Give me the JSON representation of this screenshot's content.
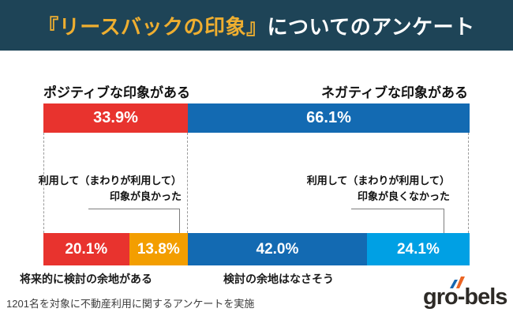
{
  "colors": {
    "header_bg": "#1e4457",
    "title_accent": "#eeae30",
    "red": "#e8332e",
    "blue": "#136ab2",
    "orange": "#f39e00",
    "light_blue": "#00a0e4",
    "text_dark": "#111111",
    "logo_text": "#2d2a26",
    "logo_mark_blue": "#1668b1",
    "logo_mark_orange": "#ea6423"
  },
  "header": {
    "title_accent": "『リースバックの印象』",
    "title_rest": "についてのアンケート"
  },
  "bar_labels": {
    "left": "ポジティブな印象がある",
    "right": "ネガティブな印象がある"
  },
  "chart_data": {
    "type": "bar",
    "subtype": "stacked-horizontal-100percent",
    "unit": "%",
    "title": "『リースバックの印象』についてのアンケート",
    "legend_position": "none",
    "rows": [
      {
        "name": "top",
        "segments": [
          {
            "label": "ポジティブな印象がある",
            "value": 33.9,
            "display": "33.9%",
            "color_key": "red"
          },
          {
            "label": "ネガティブな印象がある",
            "value": 66.1,
            "display": "66.1%",
            "color_key": "blue"
          }
        ]
      },
      {
        "name": "bottom",
        "segments": [
          {
            "label": "将来的に検討の余地がある",
            "value": 20.1,
            "display": "20.1%",
            "color_key": "red"
          },
          {
            "label": "利用して（まわりが利用して）印象が良かった",
            "value": 13.8,
            "display": "13.8%",
            "color_key": "orange"
          },
          {
            "label": "検討の余地はなさそう",
            "value": 42.0,
            "display": "42.0%",
            "color_key": "blue"
          },
          {
            "label": "利用して（まわりが利用して）印象が良くなかった",
            "value": 24.1,
            "display": "24.1%",
            "color_key": "light_blue"
          }
        ]
      }
    ]
  },
  "annotations": {
    "left": {
      "line1": "利用して（まわりが利用して）",
      "line2": "印象が良かった"
    },
    "right": {
      "line1": "利用して（まわりが利用して）",
      "line2": "印象が良くなかった"
    }
  },
  "bottom_labels": {
    "left": "将来的に検討の余地がある",
    "right": "検討の余地はなさそう"
  },
  "footer": "1201名を対象に不動産利用に関するアンケートを実施",
  "logo": {
    "pre": "gr",
    "o": "o",
    "post": "-bels"
  }
}
